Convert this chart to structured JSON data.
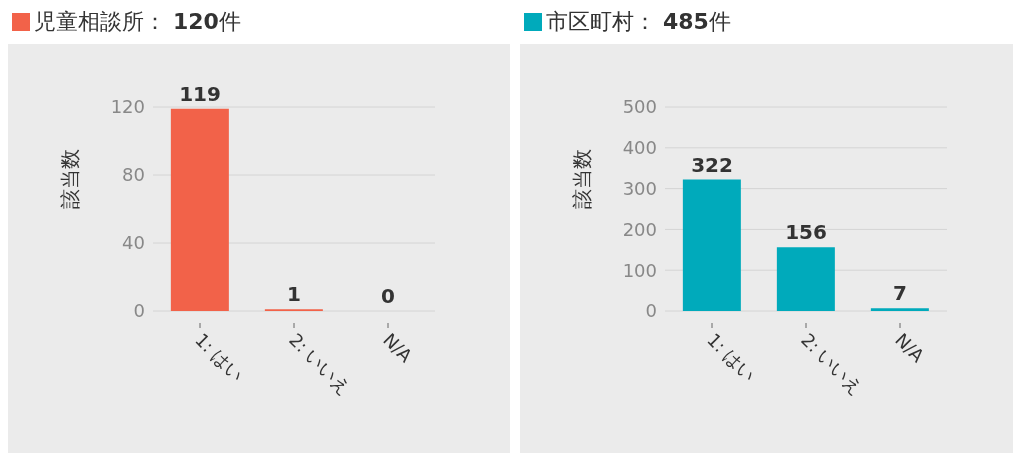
{
  "chart_data": [
    {
      "type": "bar",
      "title": "児童相談所： 120件",
      "ylabel": "該当数",
      "categories": [
        "1: はい",
        "2: いいえ",
        "N/A"
      ],
      "values": [
        119,
        1,
        0
      ],
      "color": "#f26249",
      "ylim": [
        0,
        120
      ],
      "yticks": [
        0,
        40,
        80,
        120
      ],
      "grid": "y",
      "data_labels": true
    },
    {
      "type": "bar",
      "title": "市区町村： 485件",
      "ylabel": "該当数",
      "categories": [
        "1: はい",
        "2: いいえ",
        "N/A"
      ],
      "values": [
        322,
        156,
        7
      ],
      "color": "#00aabb",
      "ylim": [
        0,
        500
      ],
      "yticks": [
        0,
        100,
        200,
        300,
        400,
        500
      ],
      "grid": "y",
      "data_labels": true
    }
  ]
}
